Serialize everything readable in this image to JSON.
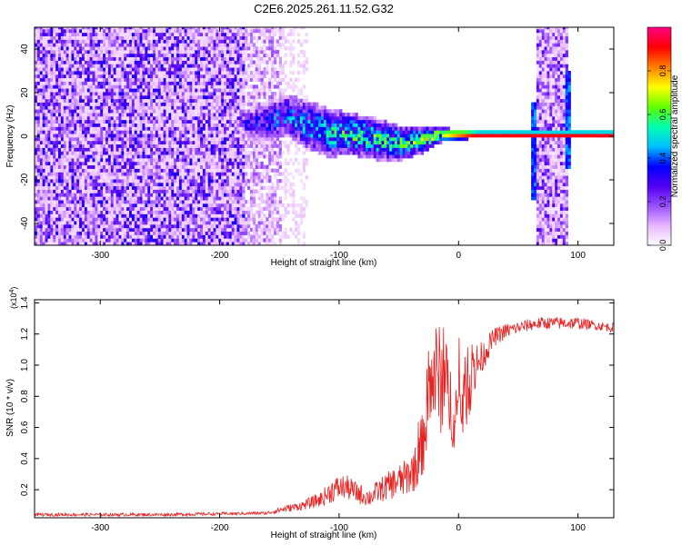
{
  "title": "C2E6.2025.261.11.52.G32",
  "chart_data": [
    {
      "type": "heatmap",
      "xlabel": "Height of straight line (km)",
      "ylabel": "Frequency (Hz)",
      "xlim": [
        -355,
        130
      ],
      "ylim": [
        -50,
        50
      ],
      "xticks": [
        -300,
        -200,
        -100,
        0,
        100
      ],
      "xtick_labels": [
        "-300",
        "-200",
        "-100",
        "0",
        "100"
      ],
      "yticks": [
        -40,
        -20,
        0,
        20,
        40
      ],
      "ytick_labels": [
        "-40",
        "-20",
        "0",
        "20",
        "40"
      ],
      "colorbar": {
        "label": "Normalized spectral amplitude",
        "range": [
          0,
          1
        ],
        "ticks": [
          0.0,
          0.2,
          0.4,
          0.6,
          0.8
        ],
        "tick_labels": [
          "0.0",
          "0.2",
          "0.4",
          "0.6",
          "0.8"
        ],
        "colors": [
          "#ffffff",
          "#e8b8ff",
          "#9a50ff",
          "#5000f0",
          "#0000ff",
          "#00c0ff",
          "#00ffb0",
          "#60ff00",
          "#ffff00",
          "#ff8000",
          "#ff0000",
          "#ff0080"
        ]
      },
      "regions": [
        {
          "name": "broadband noise",
          "x": [
            -355,
            -180
          ],
          "f": [
            -50,
            50
          ],
          "level": 0.22
        },
        {
          "name": "noise fade",
          "x": [
            -180,
            -150
          ],
          "f": [
            -50,
            50
          ],
          "level": 0.12
        },
        {
          "name": "noise fringe",
          "x": [
            -150,
            -128
          ],
          "f": [
            -50,
            50
          ],
          "level": 0.05
        },
        {
          "name": "bright noise band",
          "x": [
            63,
            90
          ],
          "f": [
            -50,
            50
          ],
          "level": 0.18
        }
      ],
      "signal_ridge": [
        {
          "x": -180,
          "f": 5,
          "spread": 4,
          "level": 0.3
        },
        {
          "x": -160,
          "f": 6,
          "spread": 6,
          "level": 0.35
        },
        {
          "x": -145,
          "f": 9,
          "spread": 6,
          "level": 0.4
        },
        {
          "x": -130,
          "f": 5,
          "spread": 7,
          "level": 0.45
        },
        {
          "x": -110,
          "f": 1,
          "spread": 7,
          "level": 0.5
        },
        {
          "x": -90,
          "f": 0,
          "spread": 6,
          "level": 0.55
        },
        {
          "x": -70,
          "f": -2,
          "spread": 6,
          "level": 0.55
        },
        {
          "x": -50,
          "f": -4,
          "spread": 5,
          "level": 0.55
        },
        {
          "x": -30,
          "f": -2,
          "spread": 4,
          "level": 0.6
        },
        {
          "x": -15,
          "f": 0,
          "spread": 2,
          "level": 0.7
        },
        {
          "x": 0,
          "f": 0,
          "spread": 1.5,
          "level": 0.85
        },
        {
          "x": 15,
          "f": 0,
          "spread": 1,
          "level": 1.0
        },
        {
          "x": 60,
          "f": 0,
          "spread": 1,
          "level": 1.0
        },
        {
          "x": 92,
          "f": 0,
          "spread": 1,
          "level": 1.0
        },
        {
          "x": 130,
          "f": 0,
          "spread": 1,
          "level": 1.0
        }
      ],
      "signal_spikes": [
        {
          "x": 62,
          "f": [
            -30,
            15
          ]
        },
        {
          "x": 90,
          "f": [
            -15,
            30
          ]
        }
      ]
    },
    {
      "type": "line",
      "xlabel": "Height of straight line (km)",
      "ylabel": "SNR (10 * v/v)",
      "multiplier": "(x10",
      "multiplier_exponent": "4",
      "multiplier_close": ")",
      "xlim": [
        -355,
        130
      ],
      "ylim": [
        0.02,
        1.42
      ],
      "xticks": [
        -300,
        -200,
        -100,
        0,
        100
      ],
      "xtick_labels": [
        "-300",
        "-200",
        "-100",
        "0",
        "100"
      ],
      "yticks": [
        0.2,
        0.4,
        0.6,
        0.8,
        1.0,
        1.2,
        1.4
      ],
      "ytick_labels": [
        "0.2",
        "0.4",
        "0.6",
        "0.8",
        "1.0",
        "1.2",
        "1.4"
      ],
      "series": [
        {
          "color": "#e82020",
          "x": [
            -355,
            -300,
            -250,
            -200,
            -160,
            -150,
            -130,
            -115,
            -105,
            -95,
            -85,
            -75,
            -65,
            -55,
            -45,
            -35,
            -30,
            -25,
            -20,
            -15,
            -10,
            -5,
            0,
            5,
            10,
            15,
            20,
            25,
            30,
            40,
            50,
            60,
            70,
            80,
            90,
            100,
            110,
            120,
            130
          ],
          "y": [
            0.04,
            0.04,
            0.04,
            0.045,
            0.05,
            0.07,
            0.1,
            0.14,
            0.2,
            0.22,
            0.18,
            0.15,
            0.2,
            0.24,
            0.27,
            0.35,
            0.5,
            0.8,
            0.95,
            0.9,
            0.85,
            0.72,
            0.68,
            0.8,
            0.9,
            1.0,
            1.05,
            1.12,
            1.18,
            1.22,
            1.24,
            1.26,
            1.27,
            1.27,
            1.27,
            1.27,
            1.26,
            1.25,
            1.24
          ],
          "noise": [
            0.01,
            0.01,
            0.01,
            0.01,
            0.01,
            0.02,
            0.03,
            0.05,
            0.08,
            0.08,
            0.07,
            0.06,
            0.08,
            0.1,
            0.12,
            0.15,
            0.22,
            0.3,
            0.35,
            0.35,
            0.3,
            0.25,
            0.25,
            0.25,
            0.2,
            0.15,
            0.1,
            0.08,
            0.06,
            0.05,
            0.04,
            0.04,
            0.04,
            0.04,
            0.04,
            0.04,
            0.03,
            0.03,
            0.03
          ]
        }
      ]
    }
  ]
}
